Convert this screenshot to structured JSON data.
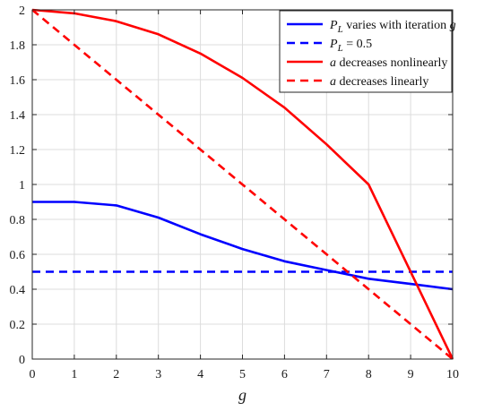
{
  "chart_data": {
    "type": "line",
    "title": "",
    "xlabel": "g",
    "ylabel": "",
    "xlim": [
      0,
      10
    ],
    "ylim": [
      0,
      2
    ],
    "xticks": [
      0,
      1,
      2,
      3,
      4,
      5,
      6,
      7,
      8,
      9,
      10
    ],
    "yticks": [
      0,
      0.2,
      0.4,
      0.6,
      0.8,
      1,
      1.2,
      1.4,
      1.6,
      1.8,
      2
    ],
    "xtick_labels": [
      "0",
      "1",
      "2",
      "3",
      "4",
      "5",
      "6",
      "7",
      "8",
      "9",
      "10"
    ],
    "ytick_labels": [
      "0",
      "0.2",
      "0.4",
      "0.6",
      "0.8",
      "1",
      "1.2",
      "1.4",
      "1.6",
      "1.8",
      "2"
    ],
    "grid": true,
    "legend_position": "top-right",
    "series": [
      {
        "name": "P_L varies with iteration g",
        "legend": {
          "var": "P",
          "sub": "L",
          "rest": " varies with iteration ",
          "tail": "g"
        },
        "color": "#0000ff",
        "style": "solid",
        "x": [
          0,
          1,
          2,
          3,
          4,
          5,
          6,
          7,
          8,
          9,
          10
        ],
        "y": [
          0.9,
          0.9,
          0.88,
          0.81,
          0.715,
          0.63,
          0.56,
          0.51,
          0.46,
          0.43,
          0.4
        ]
      },
      {
        "name": "P_L = 0.5",
        "legend": {
          "var": "P",
          "sub": "L",
          "rest": " = 0.5",
          "tail": ""
        },
        "color": "#0000ff",
        "style": "dashed",
        "x": [
          0,
          10
        ],
        "y": [
          0.5,
          0.5
        ]
      },
      {
        "name": "a decreases nonlinearly",
        "legend": {
          "var": "a",
          "sub": "",
          "rest": " decreases nonlinearly",
          "tail": ""
        },
        "color": "#ff0000",
        "style": "solid",
        "x": [
          0,
          1,
          2,
          3,
          4,
          5,
          6,
          7,
          8,
          10
        ],
        "y": [
          2.0,
          1.98,
          1.935,
          1.86,
          1.75,
          1.61,
          1.44,
          1.23,
          1.0,
          0.0
        ]
      },
      {
        "name": "a decreases linearly",
        "legend": {
          "var": "a",
          "sub": "",
          "rest": " decreases linearly",
          "tail": ""
        },
        "color": "#ff0000",
        "style": "dashed",
        "x": [
          0,
          10
        ],
        "y": [
          2.0,
          0.0
        ]
      }
    ]
  }
}
